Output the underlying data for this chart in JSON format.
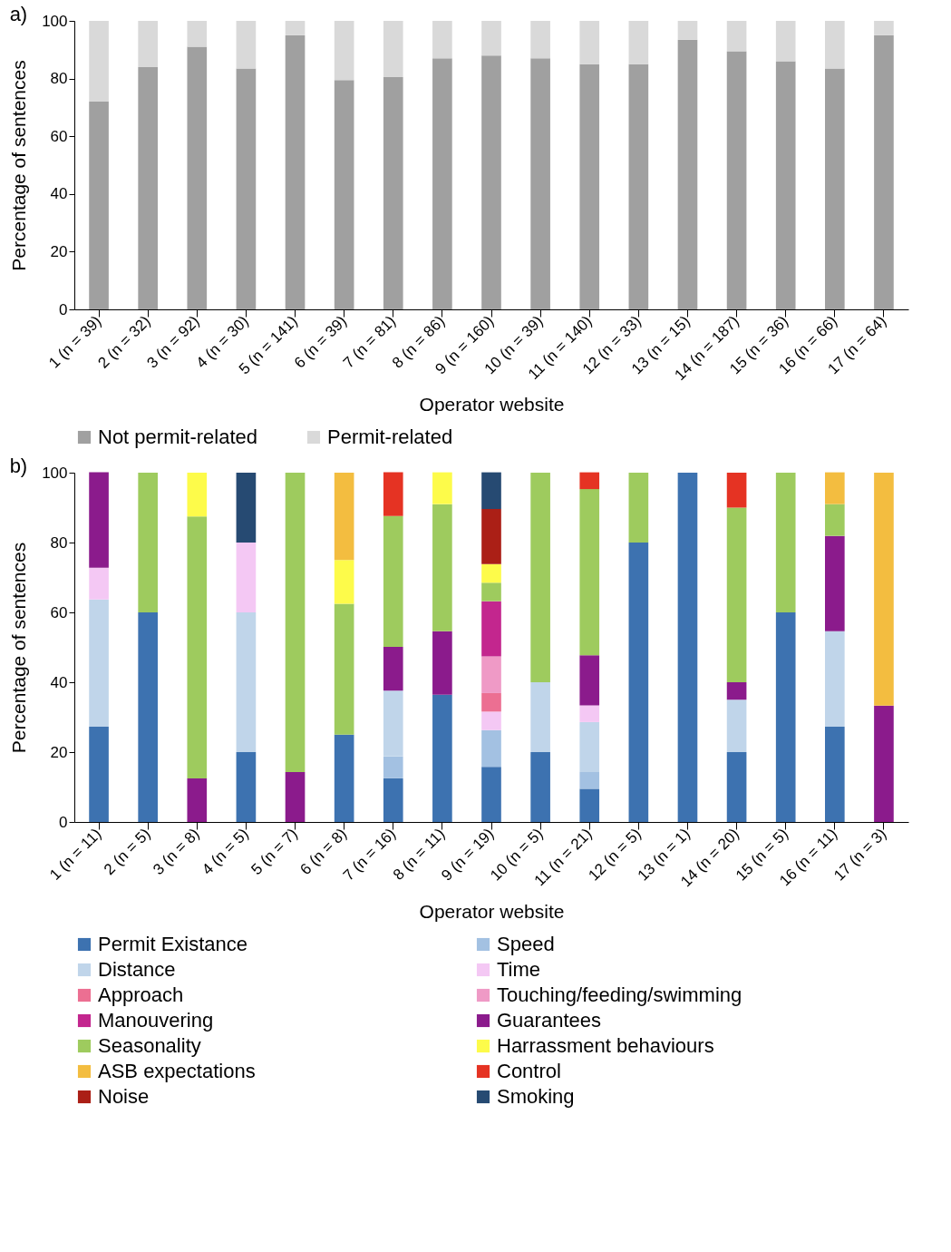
{
  "chart_data": [
    {
      "type": "bar",
      "stacked": true,
      "title": "a)",
      "xlabel": "Operator website",
      "ylabel": "Percentage of sentences",
      "legend": "bottom",
      "categories": [
        "1 (n = 39)",
        "2 (n = 32)",
        "3 (n = 92)",
        "4 (n = 30)",
        "5 (n = 141)",
        "6 (n = 39)",
        "7 (n = 81)",
        "8 (n = 86)",
        "9 (n = 160)",
        "10 (n = 39)",
        "11 (n = 140)",
        "12 (n = 33)",
        "13 (n = 15)",
        "14 (n = 187)",
        "15 (n = 36)",
        "16 (n = 66)",
        "17 (n = 64)"
      ],
      "ylim": [
        0,
        100
      ],
      "yticks": [
        0,
        20,
        40,
        60,
        80,
        100
      ],
      "series": [
        {
          "name": "Not permit-related",
          "color": "#a0a0a0",
          "values": [
            72,
            84,
            91,
            83.5,
            95,
            79.5,
            80.5,
            87,
            88,
            87,
            85,
            85,
            93.5,
            89.5,
            86,
            83.5,
            95
          ]
        },
        {
          "name": "Permit-related",
          "color": "#d9d9d9",
          "values": [
            28,
            16,
            9,
            16.5,
            5,
            20.5,
            19.5,
            13,
            12,
            13,
            15,
            15,
            6.5,
            10.5,
            14,
            16.5,
            5
          ]
        }
      ]
    },
    {
      "type": "bar",
      "stacked": true,
      "title": "b)",
      "xlabel": "Operator website",
      "ylabel": "Percentage of sentences",
      "legend": "bottom",
      "categories": [
        "1 (n = 11)",
        "2 (n = 5)",
        "3 (n = 8)",
        "4 (n = 5)",
        "5 (n = 7)",
        "6 (n = 8)",
        "7 (n = 16)",
        "8 (n = 11)",
        "9 (n = 19)",
        "10 (n = 5)",
        "11 (n = 21)",
        "12 (n = 5)",
        "13 (n = 1)",
        "14 (n = 20)",
        "15 (n = 5)",
        "16 (n = 11)",
        "17 (n = 3)"
      ],
      "ylim": [
        0,
        100
      ],
      "yticks": [
        0,
        20,
        40,
        60,
        80,
        100
      ],
      "series": [
        {
          "name": "Permit Existance",
          "color": "#3d72b0",
          "values": [
            27.3,
            60,
            null,
            20,
            null,
            25,
            12.5,
            36.4,
            15.8,
            20,
            9.5,
            80,
            100,
            20,
            60,
            27.3,
            null
          ]
        },
        {
          "name": "Speed",
          "color": "#a3c1e2",
          "values": [
            null,
            null,
            null,
            null,
            null,
            null,
            6.3,
            null,
            10.5,
            null,
            4.8,
            null,
            null,
            null,
            null,
            null,
            null
          ]
        },
        {
          "name": "Distance",
          "color": "#c0d5ea",
          "values": [
            36.4,
            null,
            null,
            40,
            null,
            null,
            18.8,
            null,
            null,
            20,
            14.3,
            null,
            null,
            15,
            null,
            27.3,
            null
          ]
        },
        {
          "name": "Time",
          "color": "#f4c8f4",
          "values": [
            9.1,
            null,
            null,
            20,
            null,
            null,
            null,
            null,
            5.3,
            null,
            4.8,
            null,
            null,
            null,
            null,
            null,
            null
          ]
        },
        {
          "name": "Approach",
          "color": "#ec6f92",
          "values": [
            null,
            null,
            null,
            null,
            null,
            null,
            null,
            null,
            5.3,
            null,
            null,
            null,
            null,
            null,
            null,
            null,
            null
          ]
        },
        {
          "name": "Touching/feeding/swimming",
          "color": "#ef9ac6",
          "values": [
            null,
            null,
            null,
            null,
            null,
            null,
            null,
            null,
            10.5,
            null,
            null,
            null,
            null,
            null,
            null,
            null,
            null
          ]
        },
        {
          "name": "Manouvering",
          "color": "#c3268e",
          "values": [
            null,
            null,
            null,
            null,
            null,
            null,
            null,
            null,
            15.8,
            null,
            null,
            null,
            null,
            null,
            null,
            null,
            null
          ]
        },
        {
          "name": "Guarantees",
          "color": "#8b1b8c",
          "values": [
            27.3,
            null,
            12.5,
            null,
            14.3,
            null,
            12.5,
            18.2,
            null,
            null,
            14.3,
            null,
            null,
            5,
            null,
            27.3,
            33.3
          ]
        },
        {
          "name": "Seasonality",
          "color": "#9ecb5e",
          "values": [
            null,
            40,
            75,
            null,
            85.7,
            37.5,
            37.5,
            36.4,
            5.3,
            60,
            47.6,
            20,
            null,
            50,
            40,
            9.1,
            null
          ]
        },
        {
          "name": "Harrassment behaviours",
          "color": "#fdfb4a",
          "values": [
            null,
            null,
            12.5,
            null,
            null,
            12.5,
            null,
            9.1,
            5.3,
            null,
            null,
            null,
            null,
            null,
            null,
            null,
            null
          ]
        },
        {
          "name": "ASB expectations",
          "color": "#f3bd40",
          "values": [
            null,
            null,
            null,
            null,
            null,
            25,
            null,
            null,
            null,
            null,
            null,
            null,
            null,
            null,
            null,
            9.1,
            66.7
          ]
        },
        {
          "name": "Control",
          "color": "#e53323",
          "values": [
            null,
            null,
            null,
            null,
            null,
            null,
            12.5,
            null,
            null,
            null,
            4.8,
            null,
            null,
            10,
            null,
            null,
            null
          ]
        },
        {
          "name": "Noise",
          "color": "#ab1f16",
          "values": [
            null,
            null,
            null,
            null,
            null,
            null,
            null,
            null,
            15.8,
            null,
            null,
            null,
            null,
            null,
            null,
            null,
            null
          ]
        },
        {
          "name": "Smoking",
          "color": "#264a72",
          "values": [
            null,
            null,
            null,
            20,
            null,
            null,
            null,
            null,
            10.5,
            null,
            null,
            null,
            null,
            null,
            null,
            null,
            null
          ]
        }
      ]
    }
  ]
}
